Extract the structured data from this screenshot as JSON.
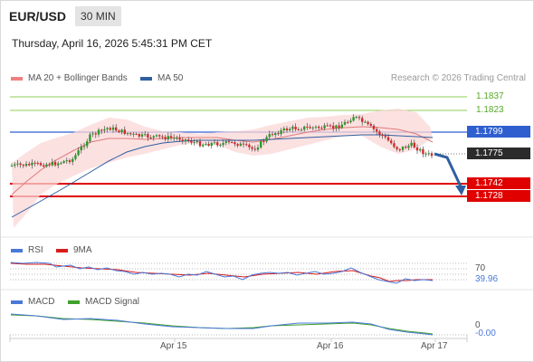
{
  "header": {
    "symbol": "EUR/USD",
    "timeframe": "30 MIN",
    "timestamp": "Thursday, April 16, 2026 5:45:31 PM CET"
  },
  "legend": [
    {
      "label": "MA 20 + Bollinger Bands",
      "color": "#f08080"
    },
    {
      "label": "MA 50",
      "color": "#2f5fa0"
    }
  ],
  "credit": "Research © 2026 Trading Central",
  "levels": {
    "r2": "1.1837",
    "r1": "1.1823",
    "pivot": "1.1799",
    "last": "1.1775",
    "s1": "1.1742",
    "s2": "1.1728"
  },
  "rsi_panel": {
    "legend": [
      {
        "label": "RSI",
        "color": "#4a78d8"
      },
      {
        "label": "9MA",
        "color": "#d81c1c"
      }
    ],
    "level_70": "70",
    "value": "39.96"
  },
  "macd_panel": {
    "legend": [
      {
        "label": "MACD",
        "color": "#4a78d8"
      },
      {
        "label": "MACD Signal",
        "color": "#3fa02a"
      }
    ],
    "level_0": "0",
    "value": "-0.00"
  },
  "x_axis": [
    "Apr 15",
    "Apr 16",
    "Apr 17"
  ],
  "colors": {
    "up_candle": "#2a9a2a",
    "down_candle": "#d42a2a",
    "support": "#e00000",
    "pivot": "#2f5fcf",
    "resistance": "#8ccc5a",
    "forecast_arrow": "#2f5fa0"
  }
}
